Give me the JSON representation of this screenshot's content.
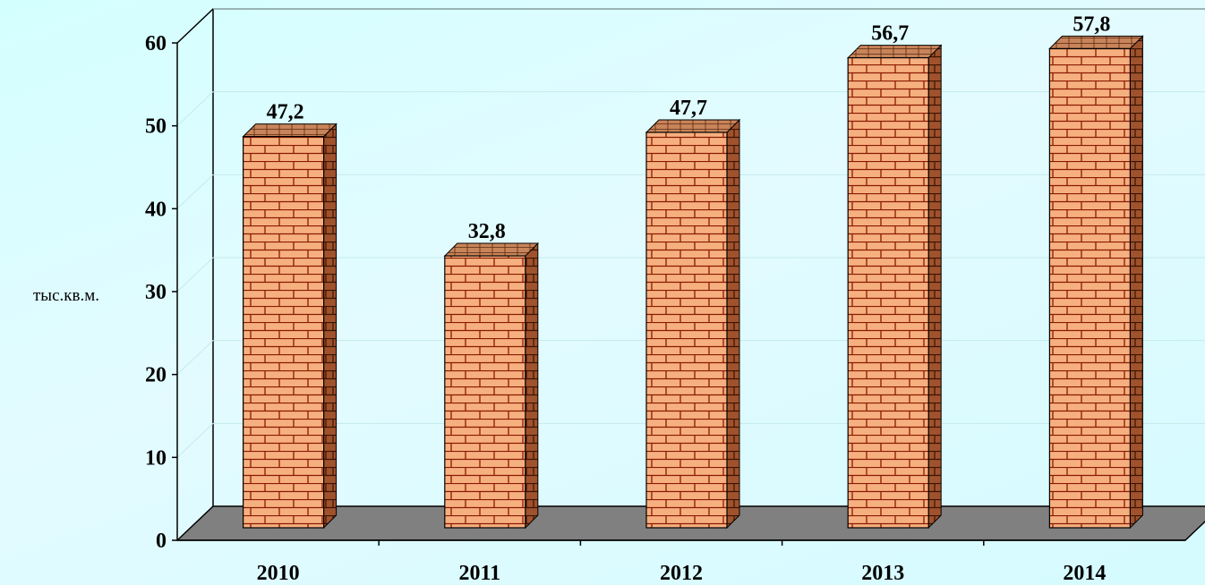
{
  "chart_data": {
    "type": "bar",
    "categories": [
      "2010",
      "2011",
      "2012",
      "2013",
      "2014"
    ],
    "values": [
      47.2,
      32.8,
      47.7,
      56.7,
      57.8
    ],
    "value_labels": [
      "47,2",
      "32,8",
      "47,7",
      "56,7",
      "57,8"
    ],
    "ylabel": "тыс.кв.м.",
    "ylim": [
      0,
      60
    ],
    "yticks": [
      "0",
      "10",
      "20",
      "30",
      "40",
      "50",
      "60"
    ],
    "grid": true,
    "style": "3d-bars-brick-texture",
    "colors": {
      "brick": "#f6b080",
      "mortar": "#8b1a00",
      "side": "#a0522d",
      "floor": "#808080",
      "background": "#d8fcff"
    }
  }
}
